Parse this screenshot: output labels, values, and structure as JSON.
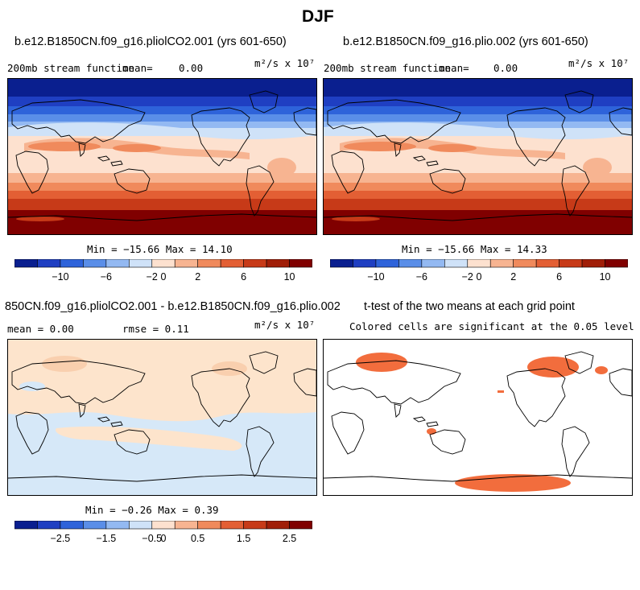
{
  "figure": {
    "season": "DJF"
  },
  "palette": {
    "colors10": [
      "#0a1f8f",
      "#1f3fc2",
      "#2e63da",
      "#5a8ee8",
      "#93b9f2",
      "#cfe2f8",
      "#fde1cf",
      "#f7b491",
      "#f08a5c",
      "#e35f34",
      "#c73a18",
      "#a01e08",
      "#800000"
    ],
    "ttest": "#f26d3d",
    "diff_pos": "#fde4cc",
    "diff_neg": "#d6e8f8",
    "ocean_bg": "#ffffff"
  },
  "panels": {
    "top_left": {
      "title": "b.e12.B1850CN.f09_g16.pliolCO2.001 (yrs 601-650)",
      "variable": "200mb stream function",
      "mean_label": "mean=",
      "mean_value": "0.00",
      "units": "m²/s x 10⁷",
      "min_max": "Min = −15.66  Max =  14.10",
      "colorbar_ticks": [
        "−10",
        "−6",
        "−2",
        "0",
        "2",
        "6",
        "10"
      ]
    },
    "top_right": {
      "title": "b.e12.B1850CN.f09_g16.plio.002 (yrs 601-650)",
      "variable": "200mb stream function",
      "mean_label": "mean=",
      "mean_value": "0.00",
      "units": "m²/s x 10⁷",
      "min_max": "Min = −15.66  Max =  14.33",
      "colorbar_ticks": [
        "−10",
        "−6",
        "−2",
        "0",
        "2",
        "6",
        "10"
      ]
    },
    "bottom_left": {
      "title": "850CN.f09_g16.pliolCO2.001 - b.e12.B1850CN.f09_g16.plio.002",
      "mean_text": "mean =   0.00",
      "rmse_text": "rmse =   0.11",
      "units": "m²/s x 10⁷",
      "min_max": "Min = −0.26  Max =   0.39",
      "colorbar_ticks": [
        "−2.5",
        "−1.5",
        "−0.5",
        "0",
        "0.5",
        "1.5",
        "2.5"
      ]
    },
    "bottom_right": {
      "title": "t-test of the two means at each grid point",
      "subtitle": "Colored cells are significant at the 0.05 level"
    }
  }
}
